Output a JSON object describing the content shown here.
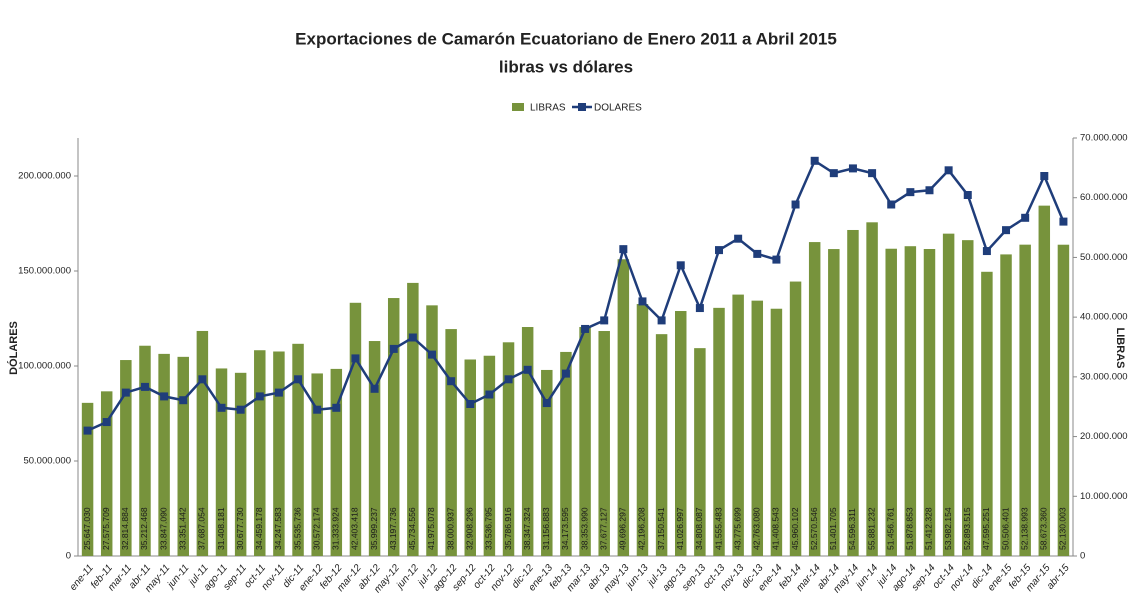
{
  "chart_data": {
    "type": "bar",
    "title": "Exportaciones de Camarón Ecuatoriano de Enero 2011 a Abril 2015",
    "subtitle": "libras vs dólares",
    "ylabel": "DÓLARES",
    "y2label": "LIBRAS",
    "categories": [
      "ene-11",
      "feb-11",
      "mar-11",
      "abr-11",
      "may-11",
      "jun-11",
      "jul-11",
      "ago-11",
      "sep-11",
      "oct-11",
      "nov-11",
      "dic-11",
      "ene-12",
      "feb-12",
      "mar-12",
      "abr-12",
      "may-12",
      "jun-12",
      "jul-12",
      "ago-12",
      "sep-12",
      "oct-12",
      "nov-12",
      "dic-12",
      "ene-13",
      "feb-13",
      "mar-13",
      "abr-13",
      "may-13",
      "jun-13",
      "jul-13",
      "ago-13",
      "sep-13",
      "oct-13",
      "nov-13",
      "dic-13",
      "ene-14",
      "feb-14",
      "mar-14",
      "abr-14",
      "may-14",
      "jun-14",
      "jul-14",
      "ago-14",
      "sep-14",
      "oct-14",
      "nov-14",
      "dic-14",
      "ene-15",
      "feb-15",
      "mar-15",
      "abr-15"
    ],
    "series": [
      {
        "name": "LIBRAS",
        "type": "bar",
        "axis": "y2",
        "color": "#77933c",
        "values": [
          25647030,
          27575709,
          32814884,
          35212468,
          33847090,
          33351442,
          37687054,
          31408181,
          30677730,
          34459178,
          34247583,
          35535736,
          30572174,
          31333924,
          42403418,
          35999237,
          43197736,
          45734556,
          41975078,
          38000937,
          32908296,
          33536795,
          35786916,
          38347324,
          31156883,
          34173595,
          38353990,
          37677127,
          49696297,
          42196208,
          37150541,
          41026997,
          34808087,
          41555483,
          43775699,
          42763080,
          41408543,
          45960102,
          52570546,
          51401705,
          54596311,
          55881232,
          51456761,
          51878853,
          51412328,
          53982154,
          52893515,
          47595251,
          50506401,
          52138993,
          58673360,
          52130003
        ],
        "value_labels": [
          "25.647.030",
          "27.575.709",
          "32.814.884",
          "35.212.468",
          "33.847.090",
          "33.351.442",
          "37.687.054",
          "31.408.181",
          "30.677.730",
          "34.459.178",
          "34.247.583",
          "35.535.736",
          "30.572.174",
          "31.333.924",
          "42.403.418",
          "35.999.237",
          "43.197.736",
          "45.734.556",
          "41.975.078",
          "38.000.937",
          "32.908.296",
          "33.536.795",
          "35.786.916",
          "38.347.324",
          "31.156.883",
          "34.173.595",
          "38.353.990",
          "37.677.127",
          "49.696.297",
          "42.196.208",
          "37.150.541",
          "41.026.997",
          "34.808.087",
          "41.555.483",
          "43.775.699",
          "42.763.080",
          "41.408.543",
          "45.960.102",
          "52.570.546",
          "51.401.705",
          "54.596.311",
          "55.881.232",
          "51.456.761",
          "51.878.853",
          "51.412.328",
          "53.982.154",
          "52.893.515",
          "47.595.251",
          "50.506.401",
          "52.138.993",
          "58.673.360",
          "52.130.003"
        ]
      },
      {
        "name": "DOLARES",
        "type": "line",
        "axis": "y",
        "color": "#1f3d7a",
        "values": [
          66000000,
          70500000,
          86000000,
          89000000,
          84000000,
          82000000,
          93000000,
          78000000,
          77000000,
          84000000,
          86000000,
          93000000,
          77000000,
          78000000,
          104000000,
          88000000,
          109000000,
          115000000,
          106000000,
          92000000,
          80000000,
          85000000,
          93000000,
          98000000,
          80500000,
          96000000,
          119500000,
          124000000,
          161500000,
          134000000,
          124000000,
          153000000,
          130500000,
          161000000,
          167000000,
          159000000,
          156000000,
          185000000,
          208000000,
          201500000,
          204000000,
          201500000,
          185000000,
          191500000,
          192500000,
          203000000,
          190000000,
          160500000,
          171500000,
          178000000,
          200000000,
          176000000
        ]
      }
    ],
    "ylim": [
      0,
      220000000
    ],
    "yticks": [
      0,
      {
        "value": 50000000,
        "label": "50.000.000"
      },
      {
        "value": 100000000,
        "label": "100.000.000"
      },
      {
        "value": 150000000,
        "label": "150.000.000"
      },
      {
        "value": 200000000,
        "label": "200.000.000"
      }
    ],
    "y2lim": [
      0,
      70000000
    ],
    "y2ticks": [
      0,
      {
        "value": 10000000,
        "label": "10.000.000"
      },
      {
        "value": 20000000,
        "label": "20.000.000"
      },
      {
        "value": 30000000,
        "label": "30.000.000"
      },
      {
        "value": 40000000,
        "label": "40.000.000"
      },
      {
        "value": 50000000,
        "label": "50.000.000"
      },
      {
        "value": 60000000,
        "label": "60.000.000"
      },
      {
        "value": 70000000,
        "label": "70.000.000"
      }
    ],
    "legend": "top",
    "grid": false
  }
}
